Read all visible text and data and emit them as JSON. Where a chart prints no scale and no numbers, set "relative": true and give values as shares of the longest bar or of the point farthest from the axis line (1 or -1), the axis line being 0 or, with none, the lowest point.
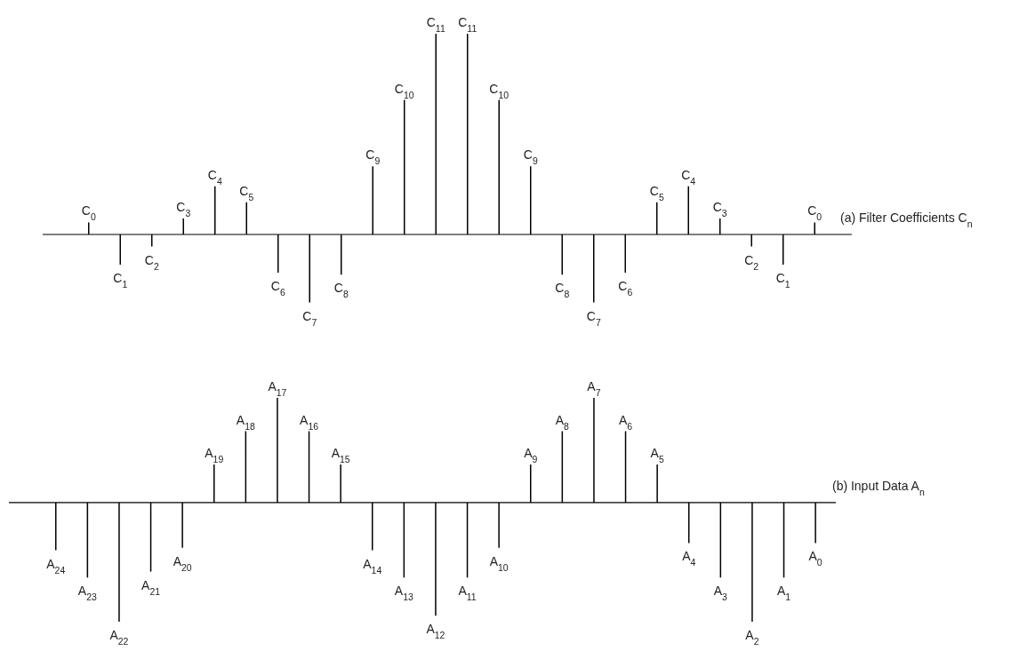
{
  "chart_data": [
    {
      "type": "bar",
      "title": "(a)  Filter Coefficients C$_{n}$",
      "relative": true,
      "color": "#000000",
      "categories": [
        "C$_{0}$",
        "C$_{1}$",
        "C$_{2}$",
        "C$_{3}$",
        "C$_{4}$",
        "C$_{5}$",
        "C$_{6}$",
        "C$_{7}$",
        "C$_{8}$",
        "C$_{9}$",
        "C$_{10}$",
        "C$_{11}$",
        "C$_{11}$",
        "C$_{10}$",
        "C$_{9}$",
        "C$_{8}$",
        "C$_{7}$",
        "C$_{6}$",
        "C$_{5}$",
        "C$_{4}$",
        "C$_{3}$",
        "C$_{2}$",
        "C$_{1}$",
        "C$_{0}$"
      ],
      "values": [
        0.06,
        -0.15,
        -0.06,
        0.08,
        0.24,
        0.16,
        -0.19,
        -0.34,
        -0.2,
        0.34,
        0.67,
        1,
        1,
        0.67,
        0.34,
        -0.2,
        -0.34,
        -0.19,
        0.16,
        0.24,
        0.08,
        -0.06,
        -0.15,
        0.06
      ]
    },
    {
      "type": "bar",
      "title": "(b)  Input Data A$_{n}$",
      "relative": true,
      "color": "#000000",
      "categories": [
        "A$_{24}$",
        "A$_{23}$",
        "A$_{22}$",
        "A$_{21}$",
        "A$_{20}$",
        "A$_{19}$",
        "A$_{18}$",
        "A$_{17}$",
        "A$_{16}$",
        "A$_{15}$",
        "A$_{14}$",
        "A$_{13}$",
        "A$_{12}$",
        "A$_{11}$",
        "A$_{10}$",
        "A$_{9}$",
        "A$_{8}$",
        "A$_{7}$",
        "A$_{6}$",
        "A$_{5}$",
        "A$_{4}$",
        "A$_{3}$",
        "A$_{2}$",
        "A$_{1}$",
        "A$_{0}$"
      ],
      "values": [
        -0.4,
        -0.63,
        -1,
        -0.58,
        -0.38,
        0.32,
        0.6,
        0.88,
        0.6,
        0.32,
        -0.4,
        -0.63,
        -0.95,
        -0.63,
        -0.38,
        0.32,
        0.6,
        0.88,
        0.6,
        0.32,
        -0.34,
        -0.63,
        -1,
        -0.63,
        -0.34
      ]
    }
  ]
}
